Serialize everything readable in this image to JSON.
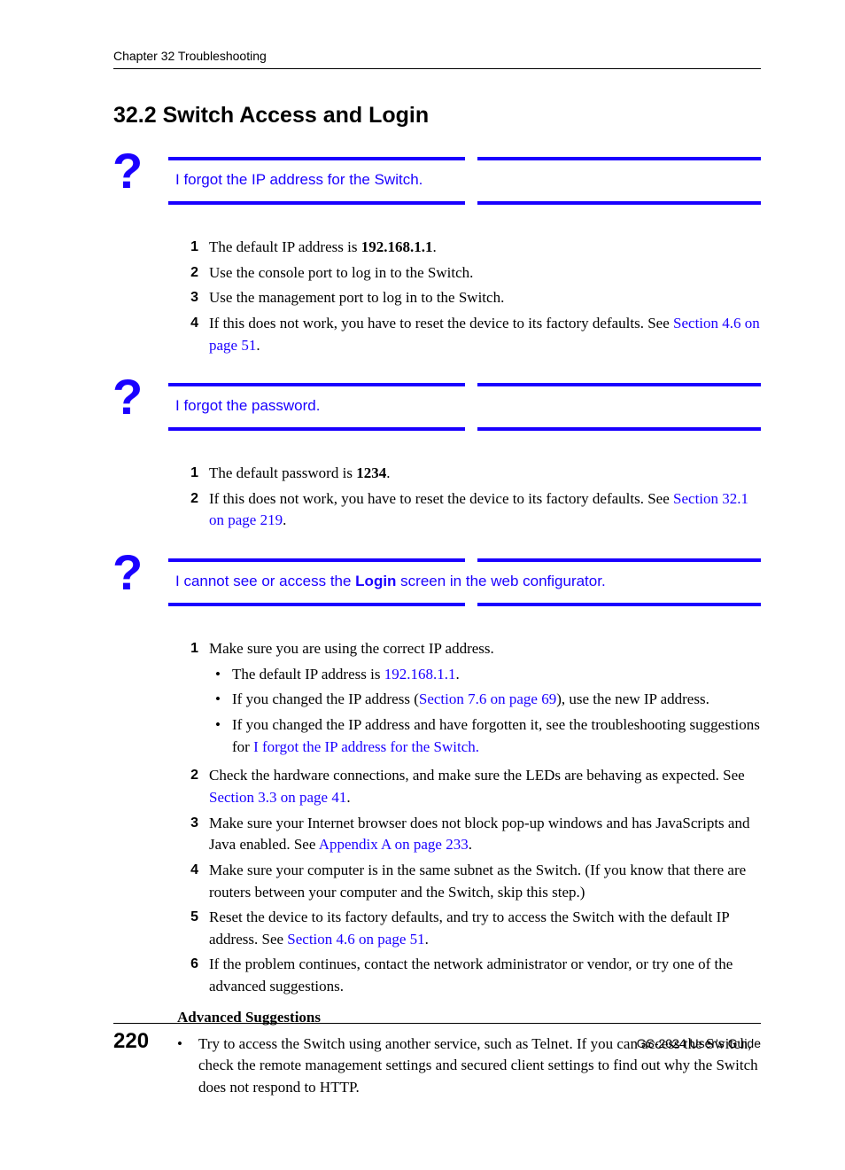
{
  "colors": {
    "link": "#1a00ff",
    "text": "#000000",
    "background": "#ffffff"
  },
  "header": {
    "chapter": "Chapter 32 Troubleshooting"
  },
  "section": {
    "number_title": "32.2  Switch Access and Login"
  },
  "q1": {
    "question": "I forgot the IP address for the Switch.",
    "steps": {
      "s1": {
        "num": "1",
        "pre": "The default IP address is ",
        "bold": "192.168.1.1",
        "post": "."
      },
      "s2": {
        "num": "2",
        "text": "Use the console port to log in to the Switch."
      },
      "s3": {
        "num": "3",
        "text": "Use the management port to log in to the Switch."
      },
      "s4": {
        "num": "4",
        "pre": "If this does not work, you have to reset the device to its factory defaults. See ",
        "link": "Section 4.6 on page 51",
        "post": "."
      }
    }
  },
  "q2": {
    "question": "I forgot the password.",
    "steps": {
      "s1": {
        "num": "1",
        "pre": "The default password is ",
        "bold": "1234",
        "post": "."
      },
      "s2": {
        "num": "2",
        "pre": "If this does not work, you have to reset the device to its factory defaults. See ",
        "link": "Section 32.1 on page 219",
        "post": "."
      }
    }
  },
  "q3": {
    "question_pre": "I cannot see or access the ",
    "question_bold": "Login",
    "question_post": " screen in the web configurator.",
    "steps": {
      "s1": {
        "num": "1",
        "text": "Make sure you are using the correct IP address.",
        "sub": {
          "a": {
            "pre": "The default IP address is ",
            "link": "192.168.1.1",
            "post": "."
          },
          "b": {
            "pre": "If you changed the IP address (",
            "link": "Section 7.6 on page 69",
            "post": "), use the new IP address."
          },
          "c": {
            "pre": "If you changed the IP address and have forgotten it, see the troubleshooting suggestions for ",
            "link": "I forgot the IP address for the Switch."
          }
        }
      },
      "s2": {
        "num": "2",
        "pre": "Check the hardware connections, and make sure the LEDs are behaving as expected. See ",
        "link": "Section 3.3 on page 41",
        "post": "."
      },
      "s3": {
        "num": "3",
        "pre": "Make sure your Internet browser does not block pop-up windows and has JavaScripts and Java enabled. See ",
        "link": "Appendix A on page 233",
        "post": "."
      },
      "s4": {
        "num": "4",
        "text": "Make sure your computer is in the same subnet as the Switch. (If you know that there are routers between your computer and the Switch, skip this step.)"
      },
      "s5": {
        "num": "5",
        "pre": "Reset the device to its factory defaults, and try to access the Switch with the default IP address. See ",
        "link": "Section 4.6 on page 51",
        "post": "."
      },
      "s6": {
        "num": "6",
        "text": "If the problem continues, contact the network administrator or vendor, or try one of the advanced suggestions."
      }
    },
    "advanced": {
      "heading": "Advanced Suggestions",
      "item1": "Try to access the Switch using another service, such as Telnet. If you can access the Switch, check the remote management settings and secured client settings to find out why the Switch does not respond to HTTP."
    }
  },
  "footer": {
    "page": "220",
    "guide": "GS-2024 User's Guide"
  }
}
